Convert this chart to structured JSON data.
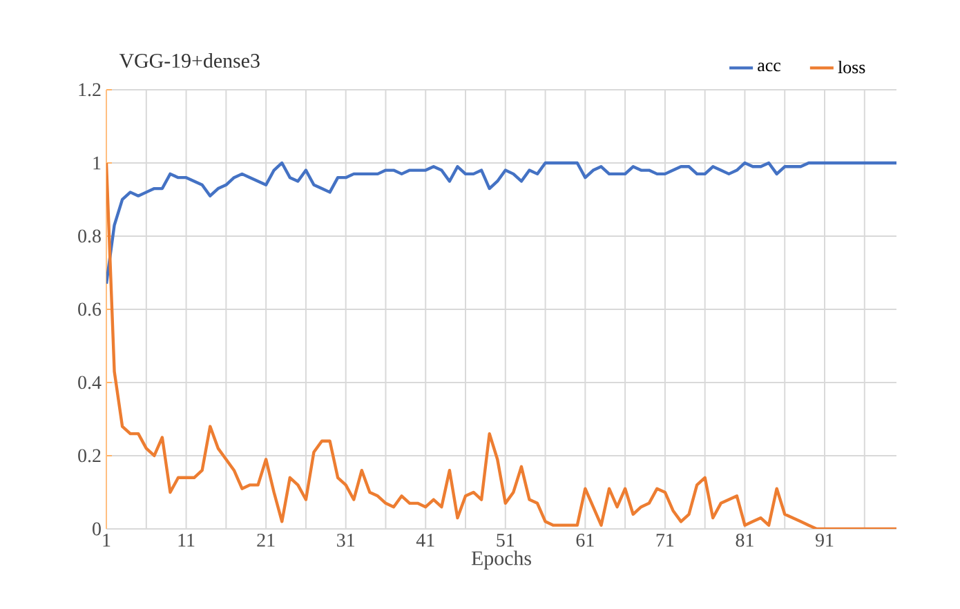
{
  "chart_data": {
    "type": "line",
    "title": "VGG-19+dense3",
    "xlabel": "Epochs",
    "categories": [
      "1",
      null,
      null,
      null,
      null,
      null,
      null,
      null,
      null,
      null,
      "11",
      null,
      null,
      null,
      null,
      null,
      null,
      null,
      null,
      null,
      "21",
      null,
      null,
      null,
      null,
      null,
      null,
      null,
      null,
      null,
      "31",
      null,
      null,
      null,
      null,
      null,
      null,
      null,
      null,
      null,
      "41",
      null,
      null,
      null,
      null,
      null,
      null,
      null,
      null,
      null,
      "51",
      null,
      null,
      null,
      null,
      null,
      null,
      null,
      null,
      null,
      "61",
      null,
      null,
      null,
      null,
      null,
      null,
      null,
      null,
      null,
      "71",
      null,
      null,
      null,
      null,
      null,
      null,
      null,
      null,
      null,
      "81",
      null,
      null,
      null,
      null,
      null,
      null,
      null,
      null,
      null,
      "91",
      null,
      null,
      null,
      null,
      null,
      null,
      null,
      null,
      null
    ],
    "series": [
      {
        "name": "acc",
        "color": "#4472c4",
        "values": [
          0.67,
          0.83,
          0.9,
          0.92,
          0.91,
          0.92,
          0.93,
          0.93,
          0.97,
          0.96,
          0.96,
          0.95,
          0.94,
          0.91,
          0.93,
          0.94,
          0.96,
          0.97,
          0.96,
          0.95,
          0.94,
          0.98,
          1.0,
          0.96,
          0.95,
          0.98,
          0.94,
          0.93,
          0.92,
          0.96,
          0.96,
          0.97,
          0.97,
          0.97,
          0.97,
          0.98,
          0.98,
          0.97,
          0.98,
          0.98,
          0.98,
          0.99,
          0.98,
          0.95,
          0.99,
          0.97,
          0.97,
          0.98,
          0.93,
          0.95,
          0.98,
          0.97,
          0.95,
          0.98,
          0.97,
          1.0,
          1.0,
          1.0,
          1.0,
          1.0,
          0.96,
          0.98,
          0.99,
          0.97,
          0.97,
          0.97,
          0.99,
          0.98,
          0.98,
          0.97,
          0.97,
          0.98,
          0.99,
          0.99,
          0.97,
          0.97,
          0.99,
          0.98,
          0.97,
          0.98,
          1.0,
          0.99,
          0.99,
          1.0,
          0.97,
          0.99,
          0.99,
          0.99,
          1.0,
          1.0,
          1.0,
          1.0,
          1.0,
          1.0,
          1.0,
          1.0,
          1.0,
          1.0,
          1.0,
          1.0
        ]
      },
      {
        "name": "loss",
        "color": "#ed7d31",
        "values": [
          1.0,
          0.43,
          0.28,
          0.26,
          0.26,
          0.22,
          0.2,
          0.25,
          0.1,
          0.14,
          0.14,
          0.14,
          0.16,
          0.28,
          0.22,
          0.19,
          0.16,
          0.11,
          0.12,
          0.12,
          0.19,
          0.1,
          0.02,
          0.14,
          0.12,
          0.08,
          0.21,
          0.24,
          0.24,
          0.14,
          0.12,
          0.08,
          0.16,
          0.1,
          0.09,
          0.07,
          0.06,
          0.09,
          0.07,
          0.07,
          0.06,
          0.08,
          0.06,
          0.16,
          0.03,
          0.09,
          0.1,
          0.08,
          0.26,
          0.19,
          0.07,
          0.1,
          0.17,
          0.08,
          0.07,
          0.02,
          0.01,
          0.01,
          0.01,
          0.01,
          0.11,
          0.06,
          0.01,
          0.11,
          0.06,
          0.11,
          0.04,
          0.06,
          0.07,
          0.11,
          0.1,
          0.05,
          0.02,
          0.04,
          0.12,
          0.14,
          0.03,
          0.07,
          0.08,
          0.09,
          0.01,
          0.02,
          0.03,
          0.01,
          0.11,
          0.04,
          0.03,
          0.02,
          0.01,
          0,
          0,
          0,
          0,
          0,
          0,
          0,
          0,
          0,
          0,
          0
        ]
      }
    ],
    "ylim": [
      0,
      1.2
    ],
    "yticks": [
      0,
      0.2,
      0.4,
      0.6,
      0.8,
      1,
      1.2
    ],
    "grid": true,
    "legend": "top right"
  }
}
